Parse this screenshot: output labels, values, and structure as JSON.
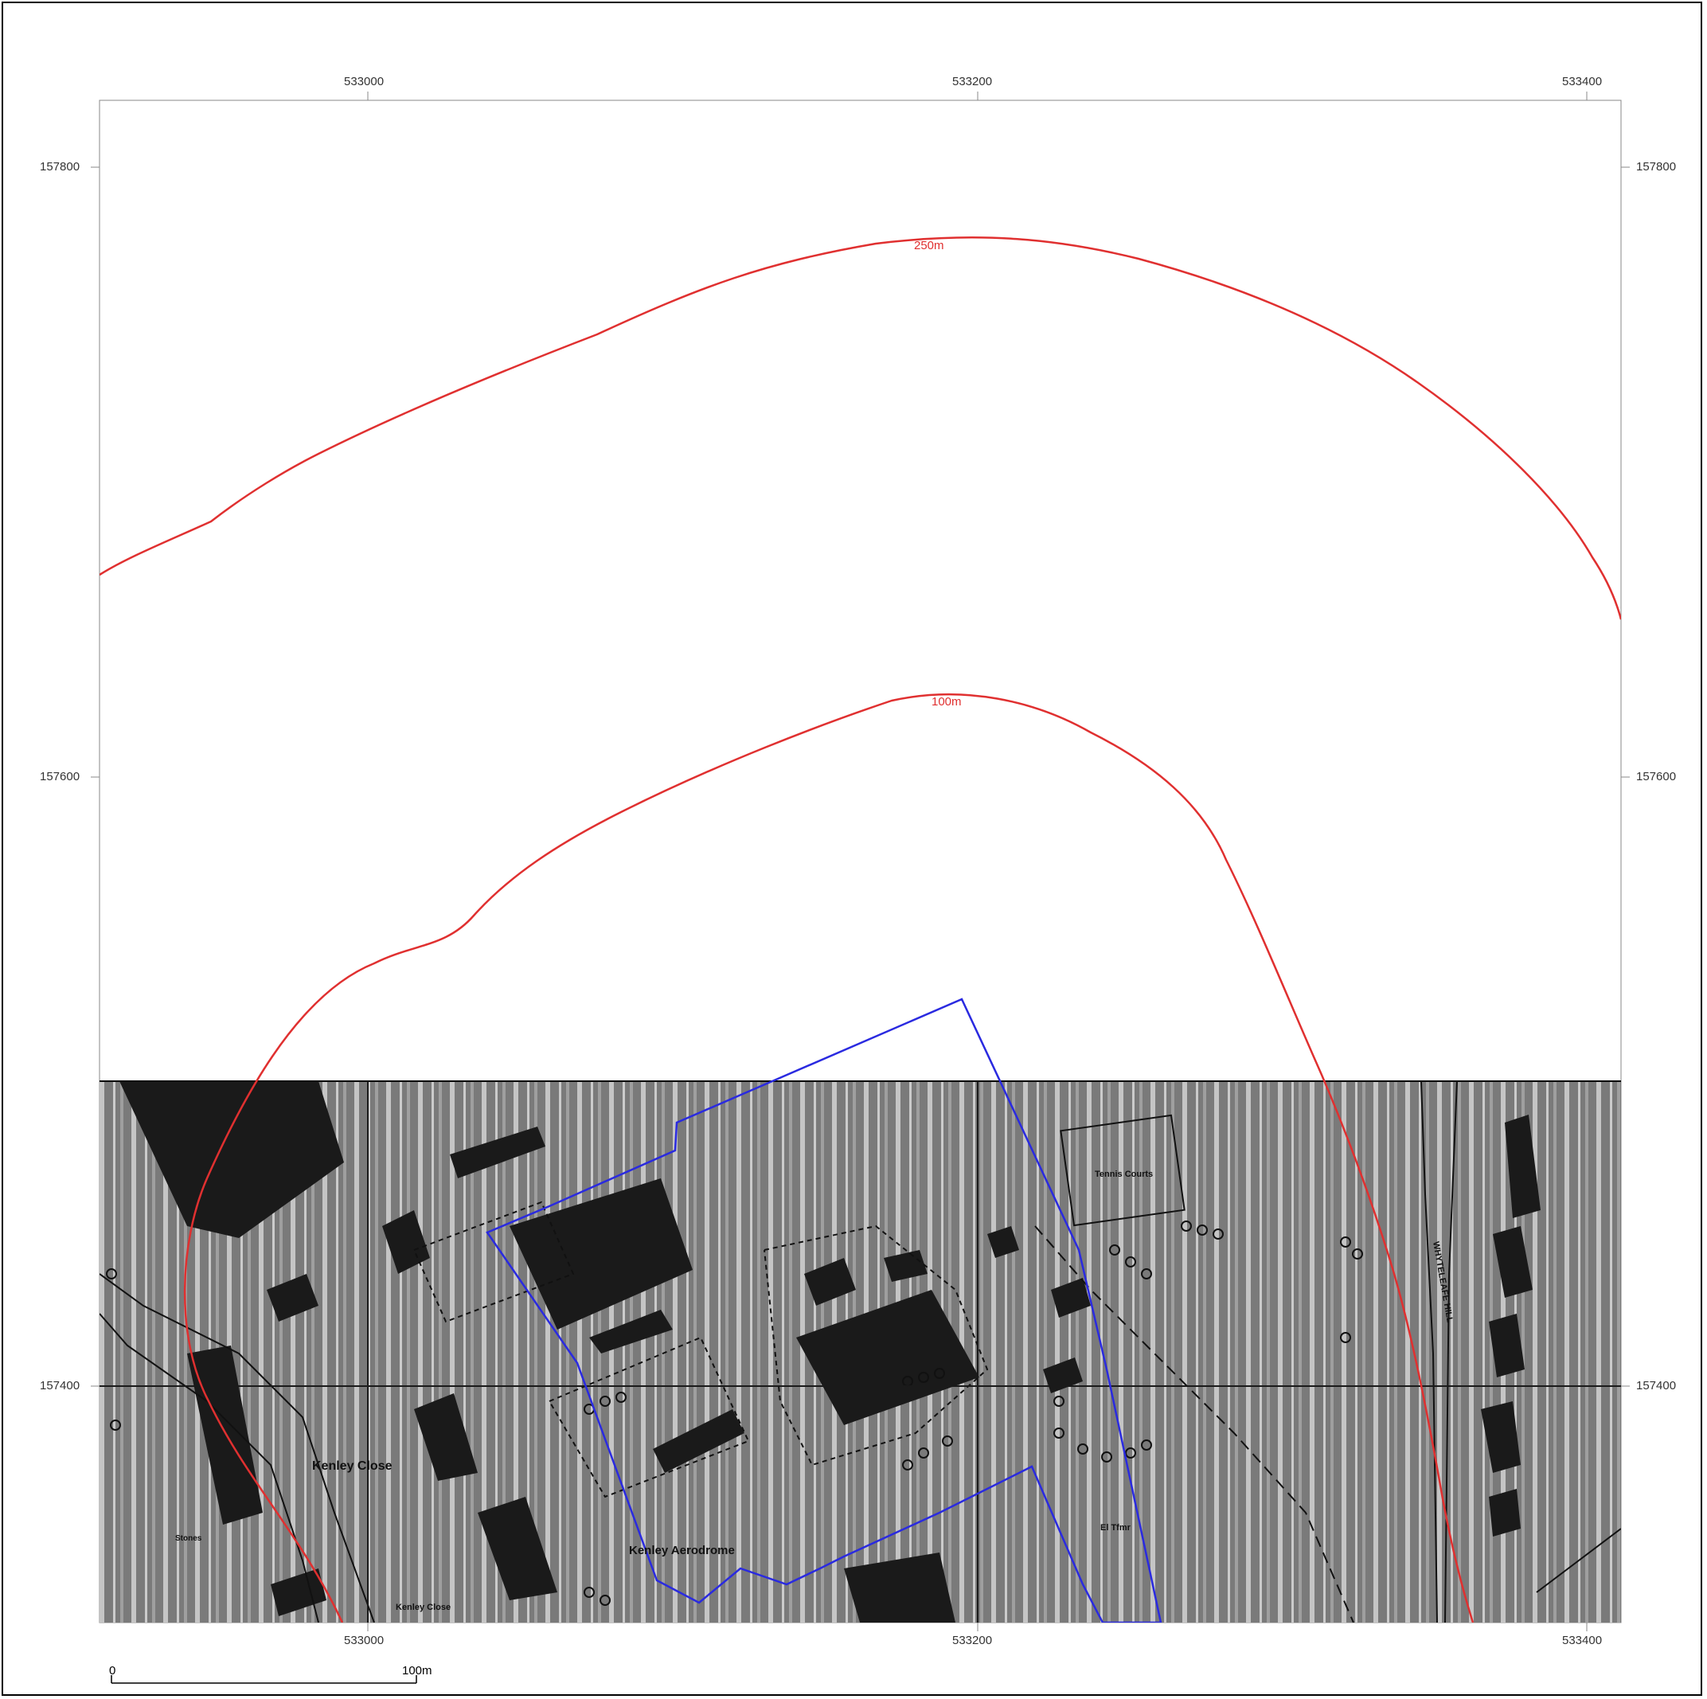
{
  "map": {
    "grid": {
      "eastings": [
        "533000",
        "533200",
        "533400"
      ],
      "northings": [
        "157800",
        "157600",
        "157400"
      ]
    },
    "buffers": [
      {
        "label": "250m",
        "color": "#e03030"
      },
      {
        "label": "100m",
        "color": "#e03030"
      }
    ],
    "site_boundary": {
      "color": "#2a2ae0"
    },
    "map_labels": [
      "Kenley Close",
      "Kenley Aerodrome",
      "Tennis Courts",
      "WHYTELEAFE HILL",
      "El Tfmr",
      "Stones"
    ],
    "scale_bar": {
      "start": "0",
      "end": "100m"
    }
  }
}
